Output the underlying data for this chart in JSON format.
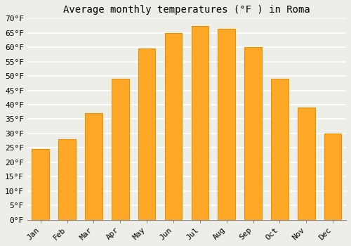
{
  "title": "Average monthly temperatures (°F ) in Roma",
  "months": [
    "Jan",
    "Feb",
    "Mar",
    "Apr",
    "May",
    "Jun",
    "Jul",
    "Aug",
    "Sep",
    "Oct",
    "Nov",
    "Dec"
  ],
  "values": [
    24.5,
    28,
    37,
    49,
    59.5,
    65,
    67.5,
    66.5,
    60,
    49,
    39,
    30
  ],
  "bar_color": "#FFA726",
  "bar_edge_color": "#E59400",
  "ylim": [
    0,
    70
  ],
  "yticks": [
    0,
    5,
    10,
    15,
    20,
    25,
    30,
    35,
    40,
    45,
    50,
    55,
    60,
    65,
    70
  ],
  "ytick_labels": [
    "0°F",
    "5°F",
    "10°F",
    "15°F",
    "20°F",
    "25°F",
    "30°F",
    "35°F",
    "40°F",
    "45°F",
    "50°F",
    "55°F",
    "60°F",
    "65°F",
    "70°F"
  ],
  "background_color": "#eeeee8",
  "grid_color": "#ffffff",
  "title_fontsize": 10,
  "tick_fontsize": 8,
  "font_family": "monospace",
  "bar_width": 0.65
}
